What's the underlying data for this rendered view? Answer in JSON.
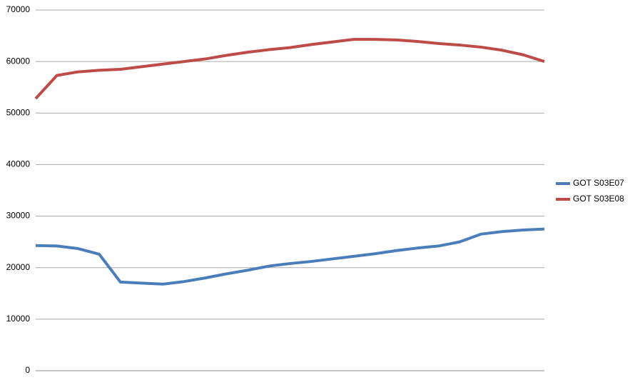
{
  "chart_data": {
    "type": "line",
    "series": [
      {
        "name": "GOT S03E07",
        "color": "#4a7ebb",
        "values": [
          24300,
          24200,
          23700,
          22600,
          17200,
          17000,
          16800,
          17300,
          18000,
          18800,
          19500,
          20300,
          20800,
          21200,
          21700,
          22200,
          22700,
          23300,
          23800,
          24200,
          25000,
          26500,
          27000,
          27300,
          27500
        ]
      },
      {
        "name": "GOT S03E08",
        "color": "#be4b48",
        "values": [
          52800,
          57300,
          58000,
          58300,
          58500,
          59000,
          59500,
          60000,
          60500,
          61200,
          61800,
          62300,
          62700,
          63300,
          63800,
          64300,
          64300,
          64200,
          63900,
          63500,
          63200,
          62800,
          62200,
          61300,
          60000
        ]
      }
    ],
    "ylim": [
      0,
      70000
    ],
    "yticks": [
      0,
      10000,
      20000,
      30000,
      40000,
      50000,
      60000,
      70000
    ],
    "grid": true,
    "legend": "right"
  }
}
